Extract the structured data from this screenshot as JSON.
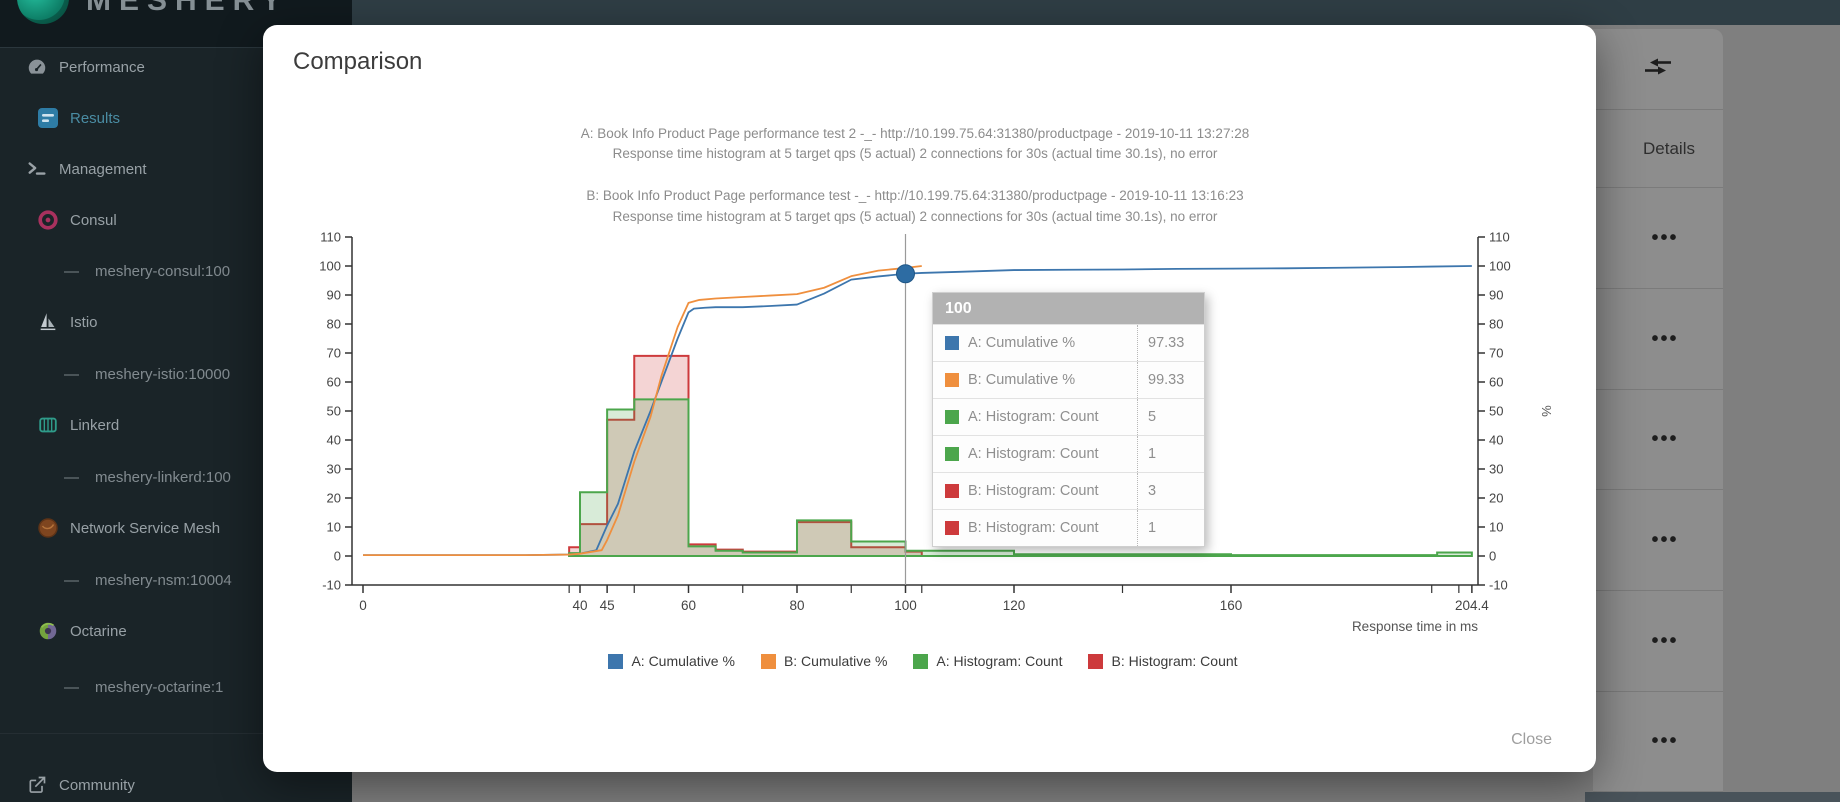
{
  "header": {
    "logo_text": "MESHERY"
  },
  "sidebar": {
    "items": [
      {
        "label": "Performance",
        "icon": "speedometer-icon",
        "indent": 0,
        "active": false
      },
      {
        "label": "Results",
        "icon": "results-icon",
        "indent": 1,
        "active": true
      },
      {
        "label": "Management",
        "icon": "terminal-icon",
        "indent": 0,
        "active": false
      },
      {
        "label": "Consul",
        "icon": "consul-icon",
        "indent": 1,
        "active": false
      },
      {
        "label": "meshery-consul:100",
        "icon": "dash",
        "indent": 2,
        "active": false
      },
      {
        "label": "Istio",
        "icon": "istio-icon",
        "indent": 1,
        "active": false
      },
      {
        "label": "meshery-istio:10000",
        "icon": "dash",
        "indent": 2,
        "active": false
      },
      {
        "label": "Linkerd",
        "icon": "linkerd-icon",
        "indent": 1,
        "active": false
      },
      {
        "label": "meshery-linkerd:100",
        "icon": "dash",
        "indent": 2,
        "active": false
      },
      {
        "label": "Network Service Mesh",
        "icon": "nsm-icon",
        "indent": 1,
        "active": false
      },
      {
        "label": "meshery-nsm:10004",
        "icon": "dash",
        "indent": 2,
        "active": false
      },
      {
        "label": "Octarine",
        "icon": "octarine-icon",
        "indent": 1,
        "active": false
      },
      {
        "label": "meshery-octarine:1",
        "icon": "dash",
        "indent": 2,
        "active": false
      },
      {
        "label": "Community",
        "icon": "external-link-icon",
        "indent": 0,
        "active": false
      }
    ]
  },
  "right_panel": {
    "details_label": "Details",
    "more_label": "•••",
    "row_count": 6
  },
  "modal": {
    "title": "Comparison",
    "close_label": "Close",
    "chart_headers": {
      "a_line1": "A: Book Info Product Page performance test 2 -_- http://10.199.75.64:31380/productpage - 2019-10-11 13:27:28",
      "a_line2": "Response time histogram at 5 target qps (5 actual) 2 connections for 30s (actual time 30.1s), no error",
      "b_line1": "B: Book Info Product Page performance test -_- http://10.199.75.64:31380/productpage - 2019-10-11 13:16:23",
      "b_line2": "Response time histogram at 5 target qps (5 actual) 2 connections for 30s (actual time 30.1s), no error"
    },
    "tooltip": {
      "header": "100",
      "rows": [
        {
          "color": "#3d76ad",
          "label": "A: Cumulative %",
          "value": "97.33"
        },
        {
          "color": "#ef8f3e",
          "label": "B: Cumulative %",
          "value": "99.33"
        },
        {
          "color": "#4ca64c",
          "label": "A: Histogram: Count",
          "value": "5"
        },
        {
          "color": "#4ca64c",
          "label": "A: Histogram: Count",
          "value": "1"
        },
        {
          "color": "#cd3a3c",
          "label": "B: Histogram: Count",
          "value": "3"
        },
        {
          "color": "#cd3a3c",
          "label": "B: Histogram: Count",
          "value": "1"
        }
      ]
    }
  },
  "chart_data": {
    "type": "line+histogram",
    "xlabel": "Response time in ms",
    "ylabel_right": "%",
    "xlim": [
      0,
      204.4
    ],
    "ylim": [
      -10,
      110
    ],
    "x_ticks_labeled": [
      {
        "v": 0,
        "label": "0"
      },
      {
        "v": 40,
        "label": "40"
      },
      {
        "v": 45,
        "label": "45"
      },
      {
        "v": 60,
        "label": "60"
      },
      {
        "v": 80,
        "label": "80"
      },
      {
        "v": 100,
        "label": "100"
      },
      {
        "v": 120,
        "label": "120"
      },
      {
        "v": 160,
        "label": "160"
      },
      {
        "v": 204.4,
        "label": "204.4"
      }
    ],
    "x_ticks_minor": [
      38,
      50,
      70,
      90,
      103,
      140,
      197,
      202
    ],
    "y_ticks": [
      -10,
      0,
      10,
      20,
      30,
      40,
      50,
      60,
      70,
      80,
      90,
      100,
      110
    ],
    "series": [
      {
        "name": "A: Cumulative %",
        "type": "line",
        "color": "#3d76ad",
        "points": [
          [
            0,
            0.3
          ],
          [
            30,
            0.3
          ],
          [
            38,
            0.5
          ],
          [
            40,
            0.8
          ],
          [
            43,
            2
          ],
          [
            45,
            10.5
          ],
          [
            47,
            18
          ],
          [
            50,
            36
          ],
          [
            53,
            50
          ],
          [
            55,
            60
          ],
          [
            58,
            75
          ],
          [
            60,
            84
          ],
          [
            61,
            85.3
          ],
          [
            63,
            85.6
          ],
          [
            65,
            85.8
          ],
          [
            70,
            85.8
          ],
          [
            75,
            86.2
          ],
          [
            80,
            86.7
          ],
          [
            85,
            90.5
          ],
          [
            90,
            95.3
          ],
          [
            95,
            96.4
          ],
          [
            100,
            97.33
          ],
          [
            103,
            97.6
          ],
          [
            110,
            98
          ],
          [
            120,
            98.6
          ],
          [
            130,
            98.7
          ],
          [
            140,
            98.8
          ],
          [
            150,
            99
          ],
          [
            160,
            99.1
          ],
          [
            170,
            99.2
          ],
          [
            180,
            99.4
          ],
          [
            190,
            99.6
          ],
          [
            197,
            99.8
          ],
          [
            204.4,
            100
          ]
        ]
      },
      {
        "name": "B: Cumulative %",
        "type": "line",
        "color": "#ef8f3e",
        "points": [
          [
            0,
            0.3
          ],
          [
            30,
            0.3
          ],
          [
            38,
            0.5
          ],
          [
            40,
            0.8
          ],
          [
            44,
            2
          ],
          [
            45,
            5.5
          ],
          [
            47,
            14
          ],
          [
            50,
            32.5
          ],
          [
            53,
            48
          ],
          [
            55,
            62
          ],
          [
            58,
            79
          ],
          [
            60,
            87.3
          ],
          [
            62,
            88.3
          ],
          [
            65,
            88.8
          ],
          [
            70,
            89.3
          ],
          [
            75,
            89.8
          ],
          [
            80,
            90.3
          ],
          [
            85,
            92.5
          ],
          [
            90,
            96.5
          ],
          [
            95,
            98.4
          ],
          [
            100,
            99.33
          ],
          [
            103,
            100
          ]
        ]
      },
      {
        "name": "A: Histogram: Count",
        "type": "histogram",
        "color": "#4ca64c",
        "steps": [
          [
            38,
            40,
            1
          ],
          [
            40,
            45,
            22
          ],
          [
            45,
            50,
            50.5
          ],
          [
            50,
            60,
            54
          ],
          [
            60,
            65,
            3.3
          ],
          [
            65,
            70,
            1.8
          ],
          [
            70,
            80,
            1.2
          ],
          [
            80,
            90,
            12.3
          ],
          [
            90,
            100,
            5
          ],
          [
            100,
            120,
            1.8
          ],
          [
            120,
            160,
            0.6
          ],
          [
            160,
            198,
            0.3
          ],
          [
            198,
            204.4,
            1.2
          ]
        ]
      },
      {
        "name": "B: Histogram: Count",
        "type": "histogram",
        "color": "#cd3a3c",
        "steps": [
          [
            38,
            40,
            3
          ],
          [
            40,
            45,
            11
          ],
          [
            45,
            50,
            47
          ],
          [
            50,
            60,
            69
          ],
          [
            60,
            65,
            4
          ],
          [
            65,
            70,
            2.2
          ],
          [
            70,
            80,
            1.5
          ],
          [
            80,
            90,
            11.7
          ],
          [
            90,
            100,
            3
          ],
          [
            100,
            103,
            1.5
          ]
        ]
      }
    ],
    "crosshair": {
      "x": 100,
      "dot_y": 97.33
    },
    "legend": [
      {
        "label": "A: Cumulative %",
        "color": "#3d76ad"
      },
      {
        "label": "B: Cumulative %",
        "color": "#ef8f3e"
      },
      {
        "label": "A: Histogram: Count",
        "color": "#4ca64c"
      },
      {
        "label": "B: Histogram: Count",
        "color": "#cd3a3c"
      }
    ]
  }
}
